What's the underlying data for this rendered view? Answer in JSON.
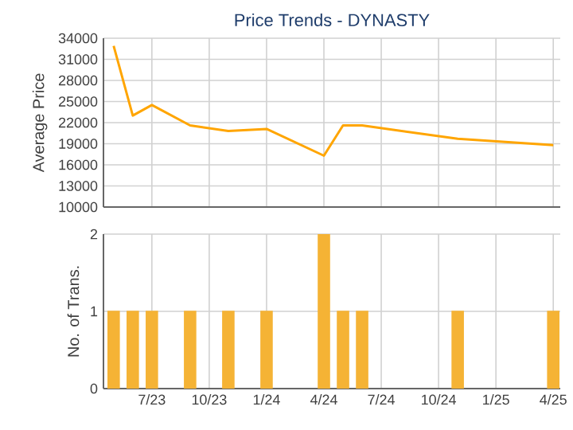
{
  "chart_data": [
    {
      "type": "line",
      "title": "Price Trends - DYNASTY",
      "ylabel": "Average Price",
      "x": [
        "2023-05",
        "2023-06",
        "2023-07",
        "2023-09",
        "2023-11",
        "2024-01",
        "2024-04",
        "2024-05",
        "2024-06",
        "2024-11",
        "2025-04"
      ],
      "series": [
        {
          "color": "#ffa500",
          "values": [
            32900,
            23000,
            24500,
            21600,
            20800,
            21100,
            17300,
            21600,
            21600,
            19700,
            18800
          ]
        }
      ],
      "xlim": [
        "2023-04-15",
        "2025-04-12"
      ],
      "xticks": [
        {
          "value": "2023-07",
          "label": null
        },
        {
          "value": "2023-10",
          "label": null
        },
        {
          "value": "2024-01",
          "label": null
        },
        {
          "value": "2024-04",
          "label": null
        },
        {
          "value": "2024-07",
          "label": null
        },
        {
          "value": "2024-10",
          "label": null
        },
        {
          "value": "2025-01",
          "label": null
        },
        {
          "value": "2025-04",
          "label": null
        }
      ],
      "ylim": [
        10000,
        34000
      ],
      "yticks": [
        10000,
        13000,
        16000,
        19000,
        22000,
        25000,
        28000,
        31000,
        34000
      ],
      "grid": true,
      "tick_labels": "y",
      "marker": "none",
      "line_style": "solid"
    },
    {
      "type": "bar",
      "ylabel": "No. of Trans.",
      "x": [
        "2023-05",
        "2023-06",
        "2023-07",
        "2023-09",
        "2023-11",
        "2024-01",
        "2024-04",
        "2024-05",
        "2024-06",
        "2024-11",
        "2025-04"
      ],
      "series": [
        {
          "color": "#f5b335",
          "values": [
            1,
            1,
            1,
            1,
            1,
            1,
            2,
            1,
            1,
            1,
            1
          ]
        }
      ],
      "xlim": [
        "2023-04-15",
        "2025-04-12"
      ],
      "xticks": [
        {
          "value": "2023-07",
          "label": "7/23"
        },
        {
          "value": "2023-10",
          "label": "10/23"
        },
        {
          "value": "2024-01",
          "label": "1/24"
        },
        {
          "value": "2024-04",
          "label": "4/24"
        },
        {
          "value": "2024-07",
          "label": "7/24"
        },
        {
          "value": "2024-10",
          "label": "10/24"
        },
        {
          "value": "2025-01",
          "label": "1/25"
        },
        {
          "value": "2025-04",
          "label": "4/25"
        }
      ],
      "ylim": [
        0,
        2
      ],
      "yticks": [
        0,
        1,
        2
      ],
      "grid": true
    }
  ]
}
